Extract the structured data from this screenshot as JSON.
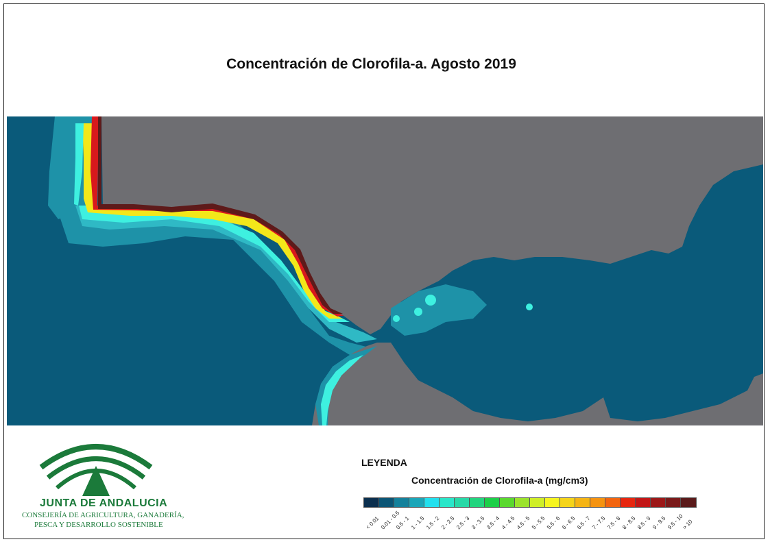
{
  "title": "Concentración de Clorofila-a. Agosto 2019",
  "map": {
    "colors": {
      "land": "#6e6e72",
      "deep_sea": "#0a5a7a",
      "shelf": "#1e92a8",
      "mid": "#2fb9c5",
      "bright": "#3ef0e0",
      "green": "#9be33a",
      "yellow": "#f3e71a",
      "orange": "#f39b1a",
      "red": "#d8191c",
      "darkred": "#5e1a1a"
    }
  },
  "logo": {
    "name": "JUNTA DE ANDALUCIA",
    "sub1": "CONSEJERÍA DE AGRICULTURA, GANADERÍA,",
    "sub2": "PESCA Y DESARROLLO SOSTENIBLE",
    "color": "#1b7a3a"
  },
  "legend": {
    "heading": "LEYENDA",
    "title": "Concentración de Clorofila-a (mg/cm3)",
    "classes": [
      {
        "label": "< 0.01",
        "color": "#0b2f4e"
      },
      {
        "label": "0.01 - 0.5",
        "color": "#0b5575"
      },
      {
        "label": "0.5 - 1",
        "color": "#14819b"
      },
      {
        "label": "1 - 1.5",
        "color": "#1ba6b8"
      },
      {
        "label": "1.5 - 2",
        "color": "#22e0ee"
      },
      {
        "label": "2 - 2.5",
        "color": "#2ae6c9"
      },
      {
        "label": "2.5 - 3",
        "color": "#27d9a7"
      },
      {
        "label": "3 - 3.5",
        "color": "#22d47e"
      },
      {
        "label": "3.5 - 4",
        "color": "#1ccf48"
      },
      {
        "label": "4 - 4.5",
        "color": "#5ad82e"
      },
      {
        "label": "4.5 - 5",
        "color": "#9be32c"
      },
      {
        "label": "5 - 5.5",
        "color": "#cfee27"
      },
      {
        "label": "5.5 - 6",
        "color": "#f6f51f"
      },
      {
        "label": "6 - 6.5",
        "color": "#f5d41a"
      },
      {
        "label": "6.5 - 7",
        "color": "#f5b414"
      },
      {
        "label": "7 - 7.5",
        "color": "#f59310"
      },
      {
        "label": "7.5 - 8",
        "color": "#f2640f"
      },
      {
        "label": "8 - 8.5",
        "color": "#e6260f"
      },
      {
        "label": "8.5 - 9",
        "color": "#c21616"
      },
      {
        "label": "9 - 9.5",
        "color": "#9c1818"
      },
      {
        "label": "9.5 - 10",
        "color": "#7a1a1a"
      },
      {
        "label": "> 10",
        "color": "#5a1a1a"
      }
    ]
  }
}
